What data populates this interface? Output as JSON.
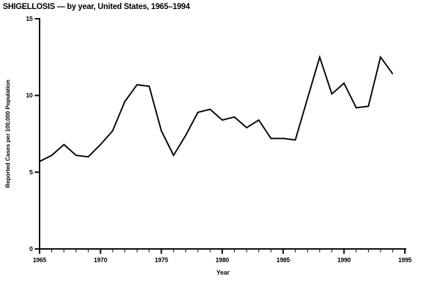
{
  "title": "SHIGELLOSIS — by year, United States, 1965–1994",
  "colors": {
    "background": "#ffffff",
    "foreground": "#000000",
    "line": "#000000"
  },
  "chart": {
    "y_axis": {
      "label": "Reported Cases per 100,000 Population",
      "ticks": [
        0,
        5,
        10,
        15
      ],
      "min": 0,
      "max": 15
    },
    "x_axis": {
      "label": "Year",
      "major_ticks": [
        1965,
        1970,
        1975,
        1980,
        1985,
        1990,
        1995
      ],
      "minor_tick_interval": 1,
      "min": 1965,
      "max": 1995
    }
  },
  "chart_data": {
    "type": "line",
    "title": "SHIGELLOSIS — by year, United States, 1965–1994",
    "xlabel": "Year",
    "ylabel": "Reported Cases per 100,000 Population",
    "x": [
      1965,
      1966,
      1967,
      1968,
      1969,
      1970,
      1971,
      1972,
      1973,
      1974,
      1975,
      1976,
      1977,
      1978,
      1979,
      1980,
      1981,
      1982,
      1983,
      1984,
      1985,
      1986,
      1987,
      1988,
      1989,
      1990,
      1991,
      1992,
      1993,
      1994
    ],
    "values": [
      5.7,
      6.1,
      6.8,
      6.1,
      6.0,
      6.8,
      7.7,
      9.6,
      10.7,
      10.6,
      7.7,
      6.1,
      7.4,
      8.9,
      9.1,
      8.4,
      8.6,
      7.9,
      8.4,
      7.2,
      7.2,
      7.1,
      9.8,
      12.5,
      10.1,
      10.8,
      9.2,
      9.3,
      12.5,
      11.4
    ],
    "xlim": [
      1965,
      1995
    ],
    "ylim": [
      0,
      15
    ],
    "grid": false,
    "legend": null,
    "line_color": "#000000"
  }
}
